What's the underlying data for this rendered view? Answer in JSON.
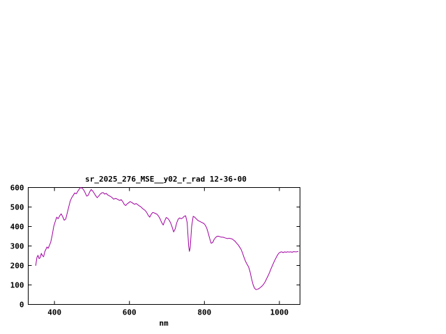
{
  "chart_data": {
    "type": "line",
    "title": "sr_2025_276_MSE__y02_r_rad 12-36-00",
    "xlabel": "nm",
    "ylabel": "",
    "xlim": [
      330,
      1055
    ],
    "ylim": [
      0,
      600
    ],
    "x_ticks": [
      400,
      600,
      800,
      1000
    ],
    "y_ticks": [
      0,
      100,
      200,
      300,
      400,
      500,
      600
    ],
    "grid": false,
    "legend": "none",
    "line_color": "#a000a0",
    "axis_color": "#000000",
    "background_color": "#ffffff",
    "series": [
      {
        "name": "sr_2025_276_MSE__y02_r_rad",
        "points": [
          [
            350,
            200
          ],
          [
            353,
            240
          ],
          [
            356,
            252
          ],
          [
            359,
            235
          ],
          [
            362,
            240
          ],
          [
            365,
            262
          ],
          [
            368,
            250
          ],
          [
            371,
            245
          ],
          [
            374,
            270
          ],
          [
            377,
            282
          ],
          [
            380,
            295
          ],
          [
            383,
            288
          ],
          [
            386,
            300
          ],
          [
            390,
            320
          ],
          [
            394,
            355
          ],
          [
            398,
            400
          ],
          [
            402,
            425
          ],
          [
            406,
            448
          ],
          [
            410,
            440
          ],
          [
            414,
            455
          ],
          [
            418,
            465
          ],
          [
            422,
            450
          ],
          [
            426,
            432
          ],
          [
            430,
            438
          ],
          [
            434,
            468
          ],
          [
            438,
            500
          ],
          [
            442,
            530
          ],
          [
            446,
            548
          ],
          [
            450,
            560
          ],
          [
            454,
            572
          ],
          [
            458,
            568
          ],
          [
            462,
            580
          ],
          [
            466,
            592
          ],
          [
            470,
            600
          ],
          [
            474,
            596
          ],
          [
            478,
            588
          ],
          [
            482,
            572
          ],
          [
            486,
            556
          ],
          [
            490,
            560
          ],
          [
            494,
            578
          ],
          [
            498,
            590
          ],
          [
            502,
            582
          ],
          [
            506,
            570
          ],
          [
            510,
            558
          ],
          [
            514,
            548
          ],
          [
            518,
            556
          ],
          [
            522,
            566
          ],
          [
            526,
            572
          ],
          [
            530,
            574
          ],
          [
            534,
            566
          ],
          [
            538,
            570
          ],
          [
            542,
            562
          ],
          [
            546,
            558
          ],
          [
            550,
            554
          ],
          [
            554,
            548
          ],
          [
            558,
            540
          ],
          [
            562,
            544
          ],
          [
            566,
            542
          ],
          [
            570,
            538
          ],
          [
            574,
            534
          ],
          [
            578,
            538
          ],
          [
            582,
            528
          ],
          [
            586,
            514
          ],
          [
            590,
            508
          ],
          [
            594,
            516
          ],
          [
            598,
            522
          ],
          [
            602,
            528
          ],
          [
            606,
            524
          ],
          [
            610,
            518
          ],
          [
            614,
            514
          ],
          [
            618,
            518
          ],
          [
            622,
            512
          ],
          [
            626,
            506
          ],
          [
            630,
            502
          ],
          [
            634,
            494
          ],
          [
            638,
            488
          ],
          [
            642,
            482
          ],
          [
            646,
            472
          ],
          [
            650,
            458
          ],
          [
            654,
            448
          ],
          [
            658,
            462
          ],
          [
            662,
            472
          ],
          [
            666,
            470
          ],
          [
            670,
            466
          ],
          [
            674,
            462
          ],
          [
            678,
            452
          ],
          [
            682,
            438
          ],
          [
            686,
            420
          ],
          [
            690,
            408
          ],
          [
            694,
            428
          ],
          [
            698,
            446
          ],
          [
            702,
            442
          ],
          [
            706,
            432
          ],
          [
            710,
            418
          ],
          [
            714,
            396
          ],
          [
            718,
            372
          ],
          [
            722,
            388
          ],
          [
            726,
            418
          ],
          [
            730,
            438
          ],
          [
            734,
            444
          ],
          [
            738,
            440
          ],
          [
            742,
            444
          ],
          [
            746,
            452
          ],
          [
            750,
            455
          ],
          [
            754,
            420
          ],
          [
            758,
            300
          ],
          [
            760,
            272
          ],
          [
            762,
            290
          ],
          [
            766,
            400
          ],
          [
            770,
            452
          ],
          [
            774,
            448
          ],
          [
            778,
            440
          ],
          [
            782,
            432
          ],
          [
            786,
            428
          ],
          [
            790,
            424
          ],
          [
            794,
            420
          ],
          [
            798,
            416
          ],
          [
            802,
            408
          ],
          [
            806,
            392
          ],
          [
            810,
            368
          ],
          [
            814,
            338
          ],
          [
            818,
            314
          ],
          [
            822,
            318
          ],
          [
            826,
            334
          ],
          [
            830,
            344
          ],
          [
            834,
            350
          ],
          [
            838,
            350
          ],
          [
            842,
            347
          ],
          [
            846,
            345
          ],
          [
            850,
            345
          ],
          [
            854,
            342
          ],
          [
            858,
            340
          ],
          [
            862,
            338
          ],
          [
            866,
            340
          ],
          [
            870,
            338
          ],
          [
            874,
            336
          ],
          [
            878,
            330
          ],
          [
            882,
            324
          ],
          [
            886,
            314
          ],
          [
            890,
            306
          ],
          [
            894,
            294
          ],
          [
            898,
            282
          ],
          [
            902,
            262
          ],
          [
            906,
            240
          ],
          [
            910,
            220
          ],
          [
            914,
            205
          ],
          [
            918,
            192
          ],
          [
            922,
            165
          ],
          [
            926,
            130
          ],
          [
            930,
            100
          ],
          [
            934,
            82
          ],
          [
            938,
            76
          ],
          [
            942,
            78
          ],
          [
            946,
            82
          ],
          [
            950,
            88
          ],
          [
            954,
            95
          ],
          [
            958,
            104
          ],
          [
            962,
            116
          ],
          [
            966,
            132
          ],
          [
            970,
            148
          ],
          [
            974,
            165
          ],
          [
            978,
            185
          ],
          [
            982,
            202
          ],
          [
            986,
            220
          ],
          [
            990,
            235
          ],
          [
            994,
            250
          ],
          [
            998,
            262
          ],
          [
            1002,
            268
          ],
          [
            1006,
            270
          ],
          [
            1010,
            266
          ],
          [
            1014,
            270
          ],
          [
            1018,
            268
          ],
          [
            1022,
            270
          ],
          [
            1026,
            269
          ],
          [
            1030,
            270
          ],
          [
            1034,
            268
          ],
          [
            1038,
            271
          ],
          [
            1042,
            270
          ],
          [
            1046,
            270
          ],
          [
            1050,
            272
          ]
        ]
      }
    ]
  }
}
